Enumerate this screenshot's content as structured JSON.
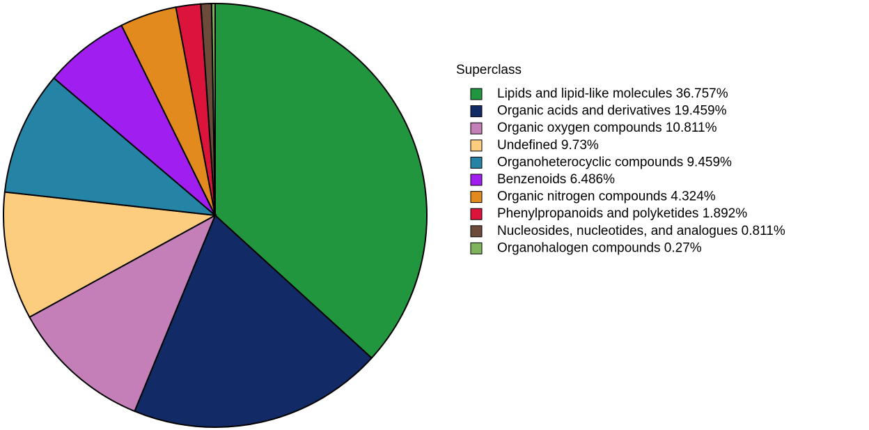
{
  "chart_data": {
    "type": "pie",
    "legend_title": "Superclass",
    "categories": [
      "Lipids and lipid-like molecules 36.757%",
      "Organic acids and derivatives 19.459%",
      "Organic oxygen compounds 10.811%",
      "Undefined 9.73%",
      "Organoheterocyclic compounds 9.459%",
      "Benzenoids 6.486%",
      "Organic nitrogen compounds 4.324%",
      "Phenylpropanoids and polyketides 1.892%",
      "Nucleosides, nucleotides, and analogues 0.811%",
      "Organohalogen compounds 0.27%"
    ],
    "values": [
      36.757,
      19.459,
      10.811,
      9.73,
      9.459,
      6.486,
      4.324,
      1.892,
      0.811,
      0.27
    ],
    "colors": [
      "#22963f",
      "#122b66",
      "#c57fb8",
      "#fdcd7f",
      "#2584a6",
      "#a01ff0",
      "#e38a1e",
      "#dc143c",
      "#6c4b3b",
      "#7fb35c"
    ],
    "legend_position": "right"
  }
}
